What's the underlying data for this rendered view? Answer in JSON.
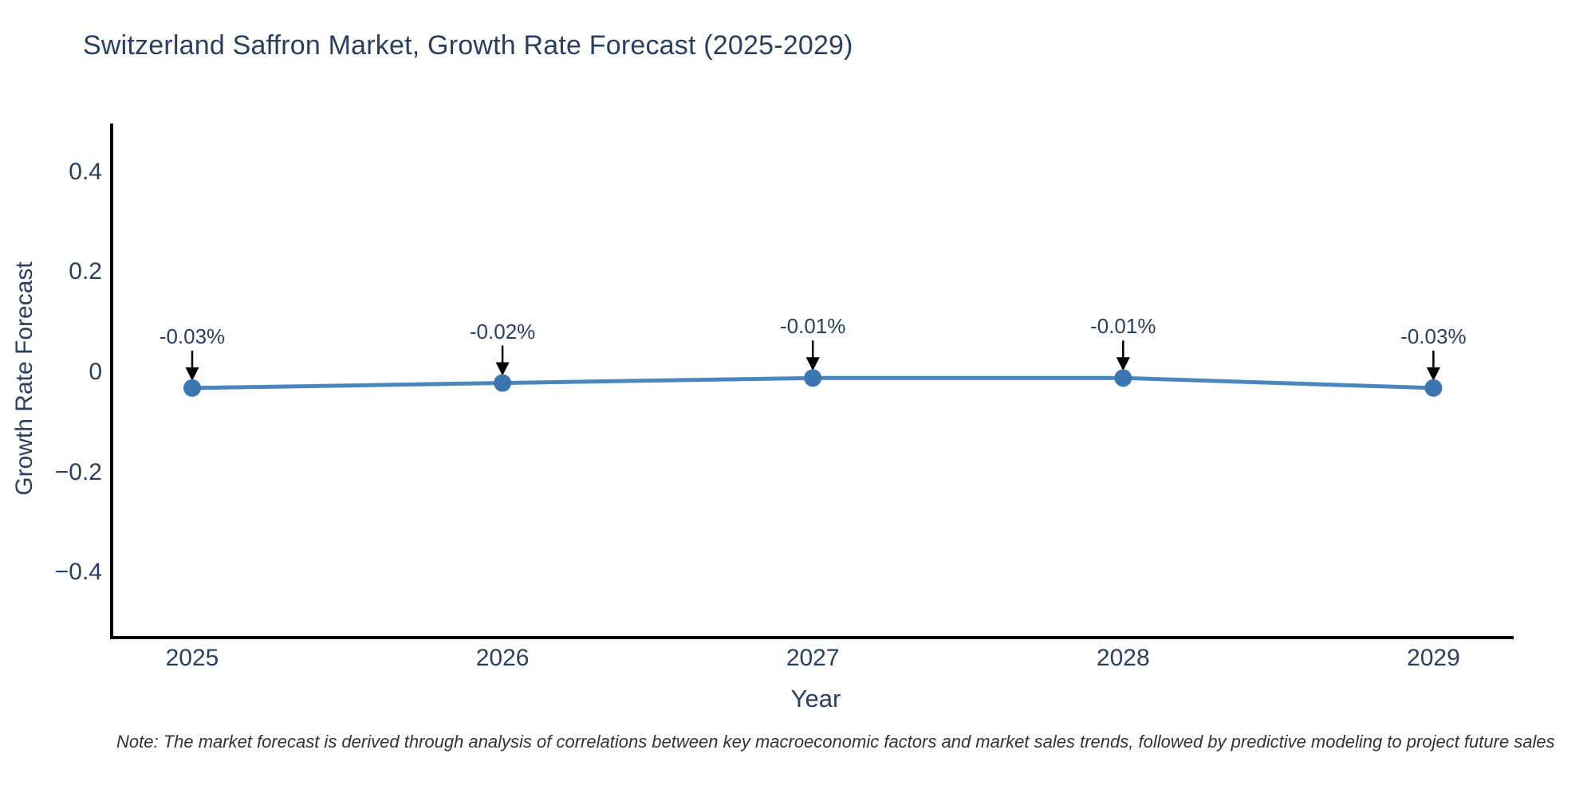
{
  "chart_data": {
    "type": "line",
    "title": "Switzerland Saffron Market, Growth Rate Forecast (2025-2029)",
    "xlabel": "Year",
    "ylabel": "Growth Rate Forecast",
    "x": [
      "2025",
      "2026",
      "2027",
      "2028",
      "2029"
    ],
    "series": [
      {
        "name": "Growth Rate Forecast",
        "values": [
          -0.03,
          -0.02,
          -0.01,
          -0.01,
          -0.03
        ]
      }
    ],
    "point_labels": [
      "-0.03%",
      "-0.02%",
      "-0.01%",
      "-0.01%",
      "-0.03%"
    ],
    "y_ticks": [
      0.4,
      0.2,
      0,
      -0.2,
      -0.4
    ],
    "y_tick_labels": [
      "0.4",
      "0.2",
      "0",
      "−0.2",
      "−0.4"
    ],
    "ylim": [
      -0.55,
      0.5
    ],
    "grid": false,
    "legend": "none",
    "colors": {
      "line": "#4a87be",
      "marker": "#3c76b0",
      "axis": "#000000",
      "text": "#2a3f5f",
      "arrow": "#000000"
    }
  },
  "note": {
    "text": "Note: The market forecast is derived through analysis of correlations between key macroeconomic factors and market sales trends, followed by predictive modeling to project future sales"
  }
}
